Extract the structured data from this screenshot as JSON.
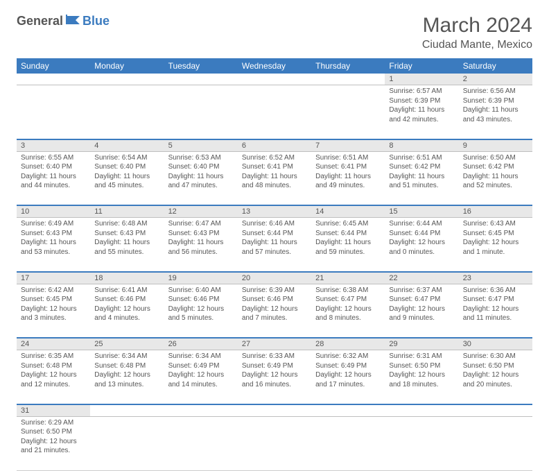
{
  "logo": {
    "part1": "General",
    "part2": "Blue"
  },
  "title": "March 2024",
  "location": "Ciudad Mante, Mexico",
  "colors": {
    "header_bg": "#3b7bbf",
    "header_text": "#ffffff",
    "daynum_bg": "#e8e8e8",
    "text": "#555555",
    "border": "#cccccc",
    "week_sep": "#3b7bbf"
  },
  "weekdays": [
    "Sunday",
    "Monday",
    "Tuesday",
    "Wednesday",
    "Thursday",
    "Friday",
    "Saturday"
  ],
  "weeks": [
    [
      null,
      null,
      null,
      null,
      null,
      {
        "n": "1",
        "sr": "Sunrise: 6:57 AM",
        "ss": "Sunset: 6:39 PM",
        "dl": "Daylight: 11 hours and 42 minutes."
      },
      {
        "n": "2",
        "sr": "Sunrise: 6:56 AM",
        "ss": "Sunset: 6:39 PM",
        "dl": "Daylight: 11 hours and 43 minutes."
      }
    ],
    [
      {
        "n": "3",
        "sr": "Sunrise: 6:55 AM",
        "ss": "Sunset: 6:40 PM",
        "dl": "Daylight: 11 hours and 44 minutes."
      },
      {
        "n": "4",
        "sr": "Sunrise: 6:54 AM",
        "ss": "Sunset: 6:40 PM",
        "dl": "Daylight: 11 hours and 45 minutes."
      },
      {
        "n": "5",
        "sr": "Sunrise: 6:53 AM",
        "ss": "Sunset: 6:40 PM",
        "dl": "Daylight: 11 hours and 47 minutes."
      },
      {
        "n": "6",
        "sr": "Sunrise: 6:52 AM",
        "ss": "Sunset: 6:41 PM",
        "dl": "Daylight: 11 hours and 48 minutes."
      },
      {
        "n": "7",
        "sr": "Sunrise: 6:51 AM",
        "ss": "Sunset: 6:41 PM",
        "dl": "Daylight: 11 hours and 49 minutes."
      },
      {
        "n": "8",
        "sr": "Sunrise: 6:51 AM",
        "ss": "Sunset: 6:42 PM",
        "dl": "Daylight: 11 hours and 51 minutes."
      },
      {
        "n": "9",
        "sr": "Sunrise: 6:50 AM",
        "ss": "Sunset: 6:42 PM",
        "dl": "Daylight: 11 hours and 52 minutes."
      }
    ],
    [
      {
        "n": "10",
        "sr": "Sunrise: 6:49 AM",
        "ss": "Sunset: 6:43 PM",
        "dl": "Daylight: 11 hours and 53 minutes."
      },
      {
        "n": "11",
        "sr": "Sunrise: 6:48 AM",
        "ss": "Sunset: 6:43 PM",
        "dl": "Daylight: 11 hours and 55 minutes."
      },
      {
        "n": "12",
        "sr": "Sunrise: 6:47 AM",
        "ss": "Sunset: 6:43 PM",
        "dl": "Daylight: 11 hours and 56 minutes."
      },
      {
        "n": "13",
        "sr": "Sunrise: 6:46 AM",
        "ss": "Sunset: 6:44 PM",
        "dl": "Daylight: 11 hours and 57 minutes."
      },
      {
        "n": "14",
        "sr": "Sunrise: 6:45 AM",
        "ss": "Sunset: 6:44 PM",
        "dl": "Daylight: 11 hours and 59 minutes."
      },
      {
        "n": "15",
        "sr": "Sunrise: 6:44 AM",
        "ss": "Sunset: 6:44 PM",
        "dl": "Daylight: 12 hours and 0 minutes."
      },
      {
        "n": "16",
        "sr": "Sunrise: 6:43 AM",
        "ss": "Sunset: 6:45 PM",
        "dl": "Daylight: 12 hours and 1 minute."
      }
    ],
    [
      {
        "n": "17",
        "sr": "Sunrise: 6:42 AM",
        "ss": "Sunset: 6:45 PM",
        "dl": "Daylight: 12 hours and 3 minutes."
      },
      {
        "n": "18",
        "sr": "Sunrise: 6:41 AM",
        "ss": "Sunset: 6:46 PM",
        "dl": "Daylight: 12 hours and 4 minutes."
      },
      {
        "n": "19",
        "sr": "Sunrise: 6:40 AM",
        "ss": "Sunset: 6:46 PM",
        "dl": "Daylight: 12 hours and 5 minutes."
      },
      {
        "n": "20",
        "sr": "Sunrise: 6:39 AM",
        "ss": "Sunset: 6:46 PM",
        "dl": "Daylight: 12 hours and 7 minutes."
      },
      {
        "n": "21",
        "sr": "Sunrise: 6:38 AM",
        "ss": "Sunset: 6:47 PM",
        "dl": "Daylight: 12 hours and 8 minutes."
      },
      {
        "n": "22",
        "sr": "Sunrise: 6:37 AM",
        "ss": "Sunset: 6:47 PM",
        "dl": "Daylight: 12 hours and 9 minutes."
      },
      {
        "n": "23",
        "sr": "Sunrise: 6:36 AM",
        "ss": "Sunset: 6:47 PM",
        "dl": "Daylight: 12 hours and 11 minutes."
      }
    ],
    [
      {
        "n": "24",
        "sr": "Sunrise: 6:35 AM",
        "ss": "Sunset: 6:48 PM",
        "dl": "Daylight: 12 hours and 12 minutes."
      },
      {
        "n": "25",
        "sr": "Sunrise: 6:34 AM",
        "ss": "Sunset: 6:48 PM",
        "dl": "Daylight: 12 hours and 13 minutes."
      },
      {
        "n": "26",
        "sr": "Sunrise: 6:34 AM",
        "ss": "Sunset: 6:49 PM",
        "dl": "Daylight: 12 hours and 14 minutes."
      },
      {
        "n": "27",
        "sr": "Sunrise: 6:33 AM",
        "ss": "Sunset: 6:49 PM",
        "dl": "Daylight: 12 hours and 16 minutes."
      },
      {
        "n": "28",
        "sr": "Sunrise: 6:32 AM",
        "ss": "Sunset: 6:49 PM",
        "dl": "Daylight: 12 hours and 17 minutes."
      },
      {
        "n": "29",
        "sr": "Sunrise: 6:31 AM",
        "ss": "Sunset: 6:50 PM",
        "dl": "Daylight: 12 hours and 18 minutes."
      },
      {
        "n": "30",
        "sr": "Sunrise: 6:30 AM",
        "ss": "Sunset: 6:50 PM",
        "dl": "Daylight: 12 hours and 20 minutes."
      }
    ],
    [
      {
        "n": "31",
        "sr": "Sunrise: 6:29 AM",
        "ss": "Sunset: 6:50 PM",
        "dl": "Daylight: 12 hours and 21 minutes."
      },
      null,
      null,
      null,
      null,
      null,
      null
    ]
  ]
}
